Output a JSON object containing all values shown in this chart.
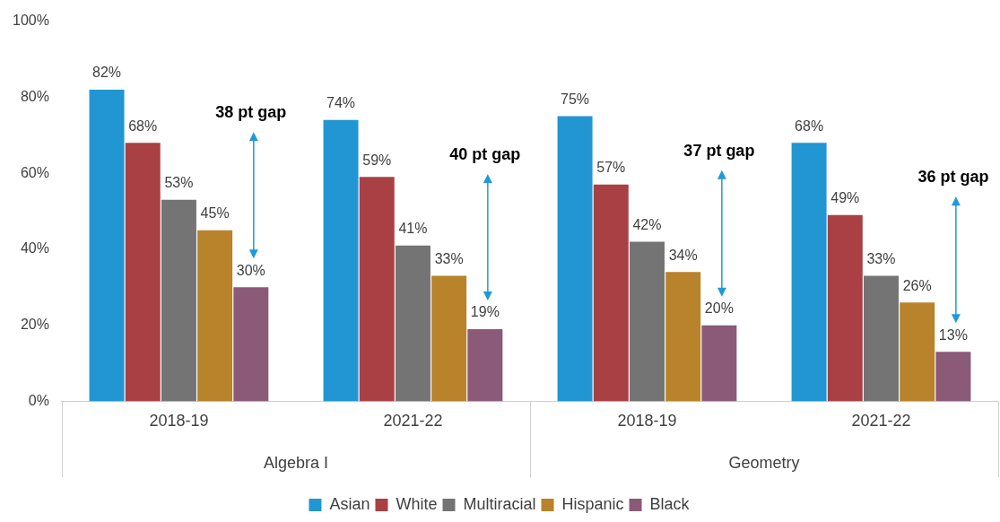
{
  "chart_data": {
    "type": "bar",
    "categories": [
      "2018-19",
      "2021-22",
      "2018-19",
      "2021-22"
    ],
    "series": [
      {
        "name": "Asian",
        "color": "#2196d3",
        "values": [
          82,
          74,
          75,
          68
        ],
        "value_labels": [
          "82%",
          "74%",
          "75%",
          "68%"
        ]
      },
      {
        "name": "White",
        "color": "#a94044",
        "values": [
          68,
          59,
          57,
          49
        ],
        "value_labels": [
          "68%",
          "59%",
          "57%",
          "49%"
        ]
      },
      {
        "name": "Multiracial",
        "color": "#747474",
        "values": [
          53,
          41,
          42,
          33
        ],
        "value_labels": [
          "53%",
          "41%",
          "42%",
          "33%"
        ]
      },
      {
        "name": "Hispanic",
        "color": "#b8832b",
        "values": [
          45,
          33,
          34,
          26
        ],
        "value_labels": [
          "45%",
          "33%",
          "34%",
          "26%"
        ]
      },
      {
        "name": "Black",
        "color": "#8a5a78",
        "values": [
          30,
          19,
          20,
          13
        ],
        "value_labels": [
          "30%",
          "19%",
          "20%",
          "13%"
        ]
      }
    ],
    "ylim": [
      0,
      100
    ],
    "yticks": [
      {
        "value": 0,
        "label": "0%"
      },
      {
        "value": 20,
        "label": "20%"
      },
      {
        "value": 40,
        "label": "40%"
      },
      {
        "value": 60,
        "label": "60%"
      },
      {
        "value": 80,
        "label": "80%"
      },
      {
        "value": 100,
        "label": "100%"
      }
    ],
    "grid": false,
    "legend": "bottom",
    "annotations": [
      "38 pt gap",
      "40 pt gap",
      "37 pt gap",
      "36 pt gap",
      "Algebra I",
      "Geometry"
    ]
  }
}
